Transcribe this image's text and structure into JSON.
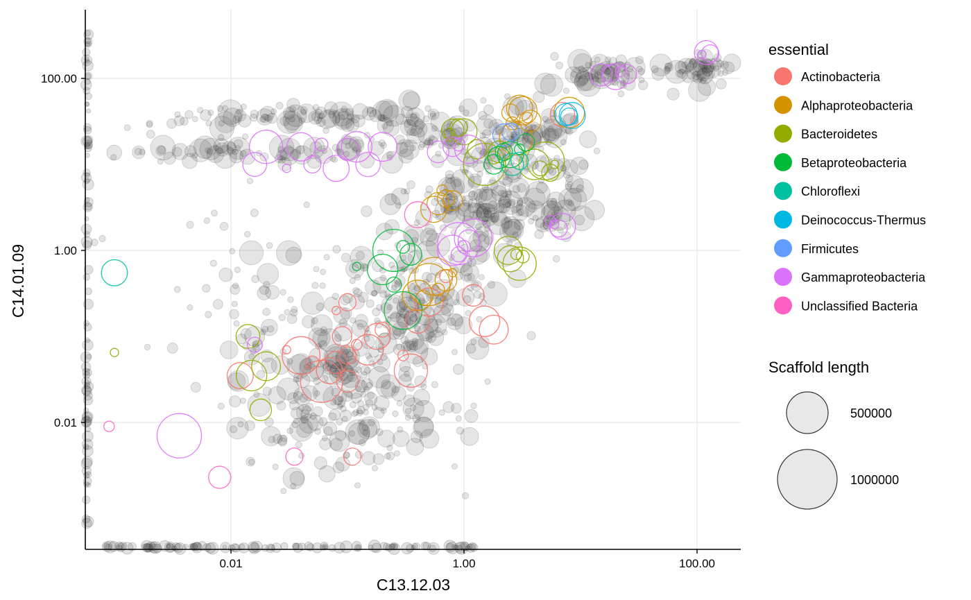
{
  "chart_data": {
    "type": "scatter",
    "title": "",
    "xlabel": "C13.12.03",
    "ylabel": "C14.01.09",
    "x_scale": "log10",
    "y_scale": "log10",
    "xlim": [
      0.0007,
      250
    ],
    "ylim": [
      0.0003,
      600
    ],
    "x_ticks": [
      {
        "value": 0.01,
        "label": "0.01"
      },
      {
        "value": 1,
        "label": "1.00"
      },
      {
        "value": 100,
        "label": "100.00"
      }
    ],
    "y_ticks": [
      {
        "value": 0.01,
        "label": "0.01"
      },
      {
        "value": 1,
        "label": "1.00"
      },
      {
        "value": 100,
        "label": "100.00"
      }
    ],
    "grid": true,
    "legend_position": "right",
    "color_legend": {
      "title": "essential",
      "entries": [
        {
          "label": "Actinobacteria",
          "color": "#F8766D"
        },
        {
          "label": "Alphaproteobacteria",
          "color": "#D39200"
        },
        {
          "label": "Bacteroidetes",
          "color": "#93AA00"
        },
        {
          "label": "Betaproteobacteria",
          "color": "#00BA38"
        },
        {
          "label": "Chloroflexi",
          "color": "#00C19F"
        },
        {
          "label": "Deinococcus-Thermus",
          "color": "#00B9E3"
        },
        {
          "label": "Firmicutes",
          "color": "#619CFF"
        },
        {
          "label": "Gammaproteobacteria",
          "color": "#DB72FB"
        },
        {
          "label": "Unclassified Bacteria",
          "color": "#FF61C3"
        }
      ]
    },
    "size_legend": {
      "title": "Scaffold length",
      "entries": [
        {
          "label": "500000",
          "value": 500000
        },
        {
          "label": "1000000",
          "value": 1000000
        }
      ]
    },
    "unclassified_color": "#333333",
    "series": [
      {
        "name": "Actinobacteria",
        "points": [
          [
            0.08,
            0.05
          ],
          [
            0.1,
            0.06
          ],
          [
            0.07,
            0.04
          ],
          [
            0.12,
            0.08
          ],
          [
            0.09,
            0.1
          ],
          [
            0.06,
            0.03
          ],
          [
            0.05,
            0.05
          ],
          [
            0.1,
            0.03
          ],
          [
            0.15,
            0.07
          ],
          [
            0.2,
            0.12
          ],
          [
            0.04,
            0.06
          ],
          [
            0.08,
            0.2
          ],
          [
            0.1,
            0.25
          ],
          [
            0.18,
            0.1
          ],
          [
            0.3,
            0.06
          ],
          [
            0.35,
            0.04
          ],
          [
            0.5,
            0.25
          ],
          [
            0.7,
            0.5
          ],
          [
            1.2,
            0.3
          ],
          [
            1.5,
            0.15
          ],
          [
            1.8,
            0.12
          ],
          [
            0.4,
            0.15
          ],
          [
            0.03,
            0.07
          ],
          [
            0.11,
            0.004
          ],
          [
            0.012,
            0.035
          ],
          [
            7,
            38
          ]
        ]
      },
      {
        "name": "Alphaproteobacteria",
        "points": [
          [
            0.6,
            3.5
          ],
          [
            0.7,
            4
          ],
          [
            0.55,
            3
          ],
          [
            0.65,
            5
          ],
          [
            0.8,
            3.8
          ],
          [
            0.5,
            0.4
          ],
          [
            0.6,
            0.35
          ],
          [
            0.7,
            0.45
          ],
          [
            0.4,
            0.3
          ],
          [
            0.45,
            0.28
          ],
          [
            0.55,
            0.5
          ],
          [
            0.8,
            0.55
          ],
          [
            2.5,
            40
          ],
          [
            3,
            45
          ],
          [
            3.5,
            35
          ],
          [
            2.8,
            20
          ],
          [
            3.2,
            42
          ],
          [
            2.6,
            30
          ],
          [
            3.7,
            32
          ],
          [
            8,
            40
          ]
        ]
      },
      {
        "name": "Bacteroidetes",
        "points": [
          [
            0.8,
            25
          ],
          [
            0.9,
            27
          ],
          [
            1,
            24
          ],
          [
            0.75,
            23
          ],
          [
            1.3,
            15
          ],
          [
            1.5,
            10
          ],
          [
            1.8,
            12
          ],
          [
            2,
            14
          ],
          [
            4,
            10
          ],
          [
            4.5,
            9
          ],
          [
            5,
            11
          ],
          [
            6,
            10
          ],
          [
            5.5,
            8
          ],
          [
            2.5,
            0.8
          ],
          [
            2.8,
            0.9
          ],
          [
            3,
            0.7
          ],
          [
            2.4,
            1
          ],
          [
            3.2,
            0.85
          ],
          [
            0.018,
            0.014
          ],
          [
            0.015,
            0.035
          ],
          [
            0.02,
            0.045
          ],
          [
            0.014,
            0.1
          ],
          [
            0.001,
            0.065
          ]
        ]
      },
      {
        "name": "Betaproteobacteria",
        "points": [
          [
            2,
            12
          ],
          [
            2.2,
            14
          ],
          [
            2.5,
            13
          ],
          [
            3,
            15
          ],
          [
            1.8,
            10
          ],
          [
            0.25,
            1
          ],
          [
            0.3,
            1.1
          ],
          [
            0.35,
            0.9
          ],
          [
            0.2,
            0.6
          ],
          [
            0.25,
            0.4
          ],
          [
            0.3,
            0.2
          ],
          [
            0.12,
            0.65
          ],
          [
            3.4,
            18
          ]
        ]
      },
      {
        "name": "Chloroflexi",
        "points": [
          [
            2.6,
            10
          ],
          [
            3,
            11
          ],
          [
            0.001,
            0.55
          ]
        ]
      },
      {
        "name": "Deinococcus-Thermus",
        "points": [
          [
            7.5,
            38
          ],
          [
            8,
            36
          ],
          [
            8.5,
            37
          ]
        ]
      },
      {
        "name": "Firmicutes",
        "points": [
          [
            2.2,
            22
          ],
          [
            2.5,
            24
          ]
        ]
      },
      {
        "name": "Gammaproteobacteria",
        "points": [
          [
            15,
            110
          ],
          [
            18,
            115
          ],
          [
            20,
            105
          ],
          [
            22,
            120
          ],
          [
            25,
            112
          ],
          [
            0.9,
            1.2
          ],
          [
            1,
            1.1
          ],
          [
            1.1,
            1.3
          ],
          [
            0.8,
            1
          ],
          [
            0.9,
            0.9
          ],
          [
            1.2,
            1.4
          ],
          [
            6,
            2
          ],
          [
            6.5,
            1.8
          ],
          [
            7,
            1.9
          ],
          [
            5.5,
            2.2
          ],
          [
            0.02,
            16
          ],
          [
            0.04,
            16
          ],
          [
            0.06,
            17
          ],
          [
            0.1,
            15
          ],
          [
            0.12,
            16
          ],
          [
            0.2,
            16
          ],
          [
            0.016,
            10
          ],
          [
            0.03,
            9
          ],
          [
            0.05,
            10
          ],
          [
            0.08,
            9
          ],
          [
            0.15,
            10
          ],
          [
            0.8,
            16
          ],
          [
            1.1,
            15
          ],
          [
            0.9,
            17
          ],
          [
            0.6,
            14
          ],
          [
            0.0036,
            0.007
          ],
          [
            0.016,
            0.08
          ],
          [
            120,
            200
          ],
          [
            110,
            190
          ],
          [
            130,
            195
          ]
        ]
      },
      {
        "name": "Unclassified Bacteria",
        "points": [
          [
            0.008,
            0.0023
          ],
          [
            0.035,
            0.004
          ],
          [
            0.4,
            2.6
          ],
          [
            0.0009,
            0.009
          ]
        ]
      }
    ]
  }
}
